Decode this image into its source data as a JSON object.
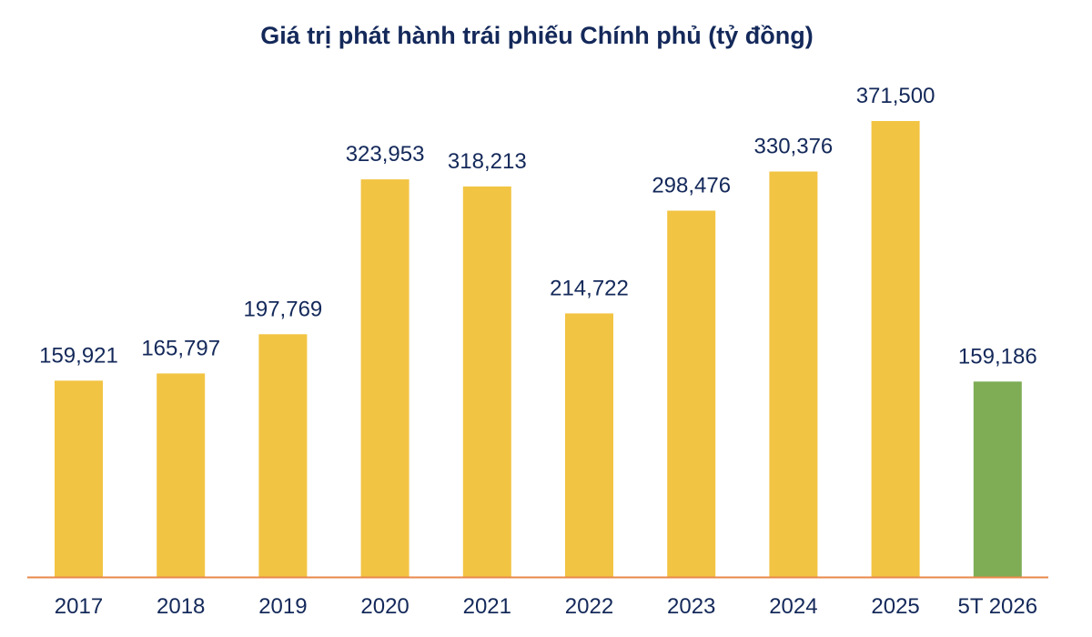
{
  "chart_data": {
    "type": "bar",
    "title": "Giá trị phát hành trái phiếu Chính phủ (tỷ đồng)",
    "categories": [
      "2017",
      "2018",
      "2019",
      "2020",
      "2021",
      "2022",
      "2023",
      "2024",
      "2025",
      "5T 2026"
    ],
    "values": [
      159921,
      165797,
      197769,
      323953,
      318213,
      214722,
      298476,
      330376,
      371500,
      159186
    ],
    "value_labels": [
      "159,921",
      "165,797",
      "197,769",
      "323,953",
      "318,213",
      "214,722",
      "298,476",
      "330,376",
      "371,500",
      "159,186"
    ],
    "bar_colors": [
      "#f2c443",
      "#f2c443",
      "#f2c443",
      "#f2c443",
      "#f2c443",
      "#f2c443",
      "#f2c443",
      "#f2c443",
      "#f2c443",
      "#7ead55"
    ],
    "axis_color": "#e8884a",
    "text_color": "#14295a",
    "xlabel": "",
    "ylabel": "",
    "ylim": [
      0,
      371500
    ],
    "grid": false,
    "legend": "none"
  }
}
